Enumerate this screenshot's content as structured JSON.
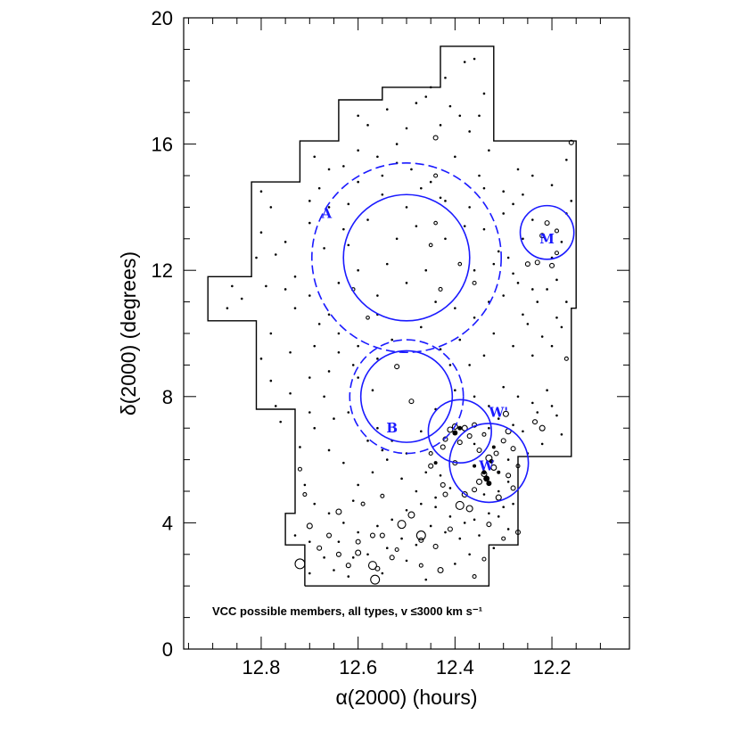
{
  "chart_data": {
    "type": "scatter",
    "xlabel_text": "α(2000) (hours)",
    "ylabel_text": "δ(2000) (degrees)",
    "xlim": [
      12.96,
      12.04
    ],
    "ylim": [
      0,
      20
    ],
    "x_reversed": true,
    "xticks": [
      12.8,
      12.6,
      12.4,
      12.2
    ],
    "xtick_labels": [
      "12.8",
      "12.6",
      "12.4",
      "12.2"
    ],
    "yticks": [
      0,
      4,
      8,
      12,
      16,
      20
    ],
    "ytick_labels": [
      "0",
      "4",
      "8",
      "12",
      "16",
      "20"
    ],
    "annotation": "VCC possible members, all types, v ≤3000 km s⁻¹",
    "colors": {
      "region": "#1a1aff",
      "points": "#000000"
    },
    "survey_boundary": [
      [
        12.71,
        2.0
      ],
      [
        12.33,
        2.0
      ],
      [
        12.33,
        3.3
      ],
      [
        12.27,
        3.3
      ],
      [
        12.27,
        6.1
      ],
      [
        12.16,
        6.1
      ],
      [
        12.16,
        10.8
      ],
      [
        12.15,
        10.8
      ],
      [
        12.15,
        16.1
      ],
      [
        12.32,
        16.1
      ],
      [
        12.32,
        19.1
      ],
      [
        12.43,
        19.1
      ],
      [
        12.43,
        17.8
      ],
      [
        12.55,
        17.8
      ],
      [
        12.55,
        17.4
      ],
      [
        12.64,
        17.4
      ],
      [
        12.64,
        16.1
      ],
      [
        12.72,
        16.1
      ],
      [
        12.72,
        14.8
      ],
      [
        12.82,
        14.8
      ],
      [
        12.82,
        11.8
      ],
      [
        12.91,
        11.8
      ],
      [
        12.91,
        10.4
      ],
      [
        12.81,
        10.4
      ],
      [
        12.81,
        7.6
      ],
      [
        12.73,
        7.6
      ],
      [
        12.73,
        4.3
      ],
      [
        12.75,
        4.3
      ],
      [
        12.75,
        3.3
      ],
      [
        12.71,
        3.3
      ],
      [
        12.71,
        2.0
      ]
    ],
    "regions": [
      {
        "label": "A",
        "ra": 12.5,
        "dec": 12.4,
        "r_solid": 2.0,
        "r_dashed": 3.0,
        "label_ra": 12.665,
        "label_dec": 13.8
      },
      {
        "label": "B",
        "ra": 12.5,
        "dec": 8.0,
        "r_solid": 1.45,
        "r_dashed": 1.8,
        "label_ra": 12.53,
        "label_dec": 7.0
      },
      {
        "label": "W'",
        "ra": 12.39,
        "dec": 6.9,
        "r_solid": 1.0,
        "label_ra": 12.31,
        "label_dec": 7.5
      },
      {
        "label": "W",
        "ra": 12.33,
        "dec": 5.9,
        "r_solid": 1.25,
        "label_ra": 12.335,
        "label_dec": 5.8
      },
      {
        "label": "M",
        "ra": 12.21,
        "dec": 13.2,
        "r_solid": 0.85,
        "label_ra": 12.21,
        "label_dec": 13.0
      }
    ],
    "galaxies_open": [
      [
        12.72,
        2.7,
        0.22
      ],
      [
        12.57,
        2.65,
        0.18
      ],
      [
        12.565,
        2.2,
        0.2
      ],
      [
        12.47,
        3.6,
        0.2
      ],
      [
        12.51,
        3.95,
        0.18
      ],
      [
        12.49,
        4.25,
        0.14
      ],
      [
        12.64,
        4.35,
        0.12
      ],
      [
        12.6,
        3.05,
        0.12
      ],
      [
        12.53,
        2.9,
        0.1
      ],
      [
        12.44,
        3.25,
        0.1
      ],
      [
        12.39,
        4.55,
        0.18
      ],
      [
        12.37,
        4.45,
        0.14
      ],
      [
        12.38,
        4.9,
        0.12
      ],
      [
        12.42,
        4.9,
        0.1
      ],
      [
        12.35,
        5.3,
        0.12
      ],
      [
        12.31,
        4.8,
        0.12
      ],
      [
        12.29,
        5.5,
        0.1
      ],
      [
        12.3,
        6.6,
        0.1
      ],
      [
        12.29,
        6.9,
        0.12
      ],
      [
        12.295,
        7.45,
        0.12
      ],
      [
        12.235,
        7.2,
        0.1
      ],
      [
        12.22,
        7.0,
        0.12
      ],
      [
        12.4,
        7.05,
        0.12
      ],
      [
        12.37,
        6.75,
        0.1
      ],
      [
        12.35,
        6.3,
        0.1
      ],
      [
        12.33,
        6.05,
        0.14
      ],
      [
        12.32,
        5.75,
        0.12
      ],
      [
        12.34,
        5.55,
        0.12
      ],
      [
        12.315,
        6.2,
        0.1
      ],
      [
        12.4,
        5.9,
        0.1
      ],
      [
        12.425,
        6.4,
        0.1
      ],
      [
        12.45,
        5.8,
        0.1
      ],
      [
        12.425,
        5.2,
        0.1
      ],
      [
        12.36,
        5.05,
        0.1
      ],
      [
        12.28,
        5.1,
        0.1
      ],
      [
        12.27,
        3.7,
        0.1
      ],
      [
        12.33,
        3.95,
        0.1
      ],
      [
        12.41,
        3.8,
        0.1
      ],
      [
        12.47,
        3.45,
        0.1
      ],
      [
        12.55,
        3.6,
        0.1
      ],
      [
        12.62,
        2.65,
        0.1
      ],
      [
        12.66,
        3.6,
        0.1
      ],
      [
        12.64,
        3.0,
        0.1
      ],
      [
        12.49,
        7.85,
        0.1
      ],
      [
        12.52,
        8.95,
        0.1
      ],
      [
        12.44,
        15.0,
        0.08
      ],
      [
        12.44,
        16.2,
        0.1
      ],
      [
        12.21,
        13.5,
        0.1
      ],
      [
        12.22,
        13.1,
        0.1
      ],
      [
        12.19,
        13.25,
        0.08
      ],
      [
        12.23,
        12.25,
        0.1
      ],
      [
        12.2,
        12.15,
        0.1
      ],
      [
        12.19,
        12.55,
        0.08
      ],
      [
        12.25,
        12.2,
        0.1
      ],
      [
        12.16,
        16.05,
        0.1
      ],
      [
        12.17,
        9.2,
        0.08
      ],
      [
        12.36,
        11.6,
        0.08
      ],
      [
        12.43,
        11.4,
        0.08
      ],
      [
        12.61,
        11.4,
        0.06
      ],
      [
        12.58,
        10.5,
        0.06
      ],
      [
        12.45,
        12.8,
        0.06
      ],
      [
        12.44,
        13.5,
        0.06
      ],
      [
        12.39,
        12.2,
        0.06
      ],
      [
        12.72,
        5.7,
        0.08
      ],
      [
        12.71,
        4.9,
        0.08
      ],
      [
        12.59,
        4.6,
        0.08
      ],
      [
        12.55,
        4.85,
        0.08
      ],
      [
        12.7,
        3.9,
        0.12
      ],
      [
        12.57,
        3.6,
        0.1
      ],
      [
        12.36,
        2.3,
        0.08
      ],
      [
        12.43,
        2.5,
        0.12
      ],
      [
        12.47,
        2.65,
        0.08
      ],
      [
        12.52,
        3.15,
        0.08
      ],
      [
        12.6,
        3.4,
        0.1
      ],
      [
        12.34,
        2.85,
        0.08
      ],
      [
        12.3,
        3.5,
        0.08
      ],
      [
        12.28,
        6.35,
        0.1
      ],
      [
        12.27,
        5.8,
        0.08
      ],
      [
        12.45,
        6.2,
        0.08
      ],
      [
        12.42,
        6.65,
        0.1
      ],
      [
        12.38,
        7.0,
        0.12
      ],
      [
        12.36,
        7.1,
        0.1
      ],
      [
        12.41,
        6.95,
        0.12
      ],
      [
        12.39,
        6.55,
        0.1
      ],
      [
        12.34,
        6.8,
        0.08
      ],
      [
        12.56,
        2.55,
        0.1
      ],
      [
        12.68,
        3.2,
        0.1
      ]
    ],
    "galaxies_filled": [
      [
        12.335,
        5.4,
        0.14
      ],
      [
        12.33,
        5.25,
        0.12
      ],
      [
        12.34,
        5.6,
        0.1
      ],
      [
        12.325,
        5.95,
        0.1
      ],
      [
        12.4,
        6.85,
        0.12
      ],
      [
        12.39,
        7.0,
        0.1
      ],
      [
        12.44,
        5.9,
        0.06
      ],
      [
        12.36,
        5.8,
        0.06
      ],
      [
        12.32,
        6.4,
        0.06
      ],
      [
        12.31,
        5.6,
        0.06
      ]
    ],
    "galaxies_dots": [
      [
        12.69,
        15.6
      ],
      [
        12.7,
        14.2
      ],
      [
        12.66,
        15.2
      ],
      [
        12.6,
        15.8
      ],
      [
        12.52,
        16.0
      ],
      [
        12.49,
        15.2
      ],
      [
        12.45,
        14.8
      ],
      [
        12.42,
        14.2
      ],
      [
        12.4,
        15.6
      ],
      [
        12.35,
        15.0
      ],
      [
        12.33,
        15.8
      ],
      [
        12.3,
        14.5
      ],
      [
        12.27,
        15.2
      ],
      [
        12.24,
        15.0
      ],
      [
        12.2,
        14.7
      ],
      [
        12.17,
        15.5
      ],
      [
        12.16,
        14.2
      ],
      [
        12.78,
        14.0
      ],
      [
        12.8,
        13.2
      ],
      [
        12.77,
        12.5
      ],
      [
        12.73,
        11.8
      ],
      [
        12.7,
        11.2
      ],
      [
        12.66,
        10.6
      ],
      [
        12.64,
        10.0
      ],
      [
        12.6,
        9.6
      ],
      [
        12.56,
        9.2
      ],
      [
        12.53,
        9.8
      ],
      [
        12.47,
        10.2
      ],
      [
        12.43,
        9.5
      ],
      [
        12.39,
        9.8
      ],
      [
        12.36,
        10.5
      ],
      [
        12.32,
        10.0
      ],
      [
        12.28,
        9.6
      ],
      [
        12.25,
        10.3
      ],
      [
        12.22,
        9.9
      ],
      [
        12.19,
        10.5
      ],
      [
        12.17,
        11.0
      ],
      [
        12.19,
        11.7
      ],
      [
        12.24,
        11.4
      ],
      [
        12.28,
        11.9
      ],
      [
        12.31,
        12.6
      ],
      [
        12.34,
        13.3
      ],
      [
        12.37,
        14.0
      ],
      [
        12.55,
        14.4
      ],
      [
        12.58,
        13.6
      ],
      [
        12.62,
        12.8
      ],
      [
        12.54,
        12.2
      ],
      [
        12.5,
        11.6
      ],
      [
        12.46,
        12.0
      ],
      [
        12.42,
        13.0
      ],
      [
        12.48,
        13.4
      ],
      [
        12.52,
        13.0
      ],
      [
        12.56,
        11.2
      ],
      [
        12.6,
        12.0
      ],
      [
        12.63,
        13.3
      ],
      [
        12.67,
        12.7
      ],
      [
        12.7,
        13.5
      ],
      [
        12.75,
        12.9
      ],
      [
        12.79,
        11.5
      ],
      [
        12.87,
        10.8
      ],
      [
        12.84,
        11.1
      ],
      [
        12.78,
        10.0
      ],
      [
        12.74,
        9.4
      ],
      [
        12.7,
        8.6
      ],
      [
        12.67,
        8.0
      ],
      [
        12.62,
        7.5
      ],
      [
        12.6,
        8.6
      ],
      [
        12.56,
        7.0
      ],
      [
        12.53,
        6.6
      ],
      [
        12.47,
        6.9
      ],
      [
        12.44,
        7.6
      ],
      [
        12.4,
        8.2
      ],
      [
        12.36,
        8.0
      ],
      [
        12.33,
        7.7
      ],
      [
        12.3,
        8.3
      ],
      [
        12.27,
        8.0
      ],
      [
        12.24,
        7.8
      ],
      [
        12.21,
        8.2
      ],
      [
        12.19,
        7.4
      ],
      [
        12.18,
        6.8
      ],
      [
        12.22,
        6.5
      ],
      [
        12.25,
        6.2
      ],
      [
        12.29,
        6.0
      ],
      [
        12.76,
        7.2
      ],
      [
        12.78,
        8.5
      ],
      [
        12.8,
        9.2
      ],
      [
        12.72,
        6.4
      ],
      [
        12.69,
        7.0
      ],
      [
        12.66,
        6.3
      ],
      [
        12.63,
        5.9
      ],
      [
        12.6,
        5.2
      ],
      [
        12.57,
        5.6
      ],
      [
        12.54,
        6.0
      ],
      [
        12.51,
        5.4
      ],
      [
        12.48,
        5.0
      ],
      [
        12.44,
        4.5
      ],
      [
        12.41,
        4.2
      ],
      [
        12.38,
        4.0
      ],
      [
        12.35,
        3.6
      ],
      [
        12.32,
        3.2
      ],
      [
        12.29,
        3.8
      ],
      [
        12.31,
        4.2
      ],
      [
        12.28,
        4.6
      ],
      [
        12.6,
        3.7
      ],
      [
        12.64,
        3.4
      ],
      [
        12.67,
        2.9
      ],
      [
        12.62,
        2.3
      ],
      [
        12.55,
        2.4
      ],
      [
        12.5,
        2.8
      ],
      [
        12.46,
        2.2
      ],
      [
        12.4,
        2.7
      ],
      [
        12.37,
        3.0
      ],
      [
        12.73,
        3.6
      ],
      [
        12.69,
        4.6
      ],
      [
        12.71,
        5.2
      ],
      [
        12.58,
        16.6
      ],
      [
        12.54,
        17.1
      ],
      [
        12.5,
        16.5
      ],
      [
        12.46,
        17.5
      ],
      [
        12.42,
        18.1
      ],
      [
        12.38,
        18.6
      ],
      [
        12.36,
        18.7
      ],
      [
        12.34,
        17.6
      ],
      [
        12.39,
        16.9
      ],
      [
        12.43,
        16.6
      ],
      [
        12.48,
        17.3
      ],
      [
        12.45,
        17.8
      ],
      [
        12.41,
        17.2
      ],
      [
        12.37,
        16.4
      ],
      [
        12.35,
        16.9
      ],
      [
        12.6,
        16.9
      ],
      [
        12.56,
        15.6
      ],
      [
        12.68,
        14.6
      ],
      [
        12.62,
        14.1
      ],
      [
        12.43,
        14.3
      ],
      [
        12.38,
        13.4
      ],
      [
        12.36,
        12.0
      ],
      [
        12.44,
        11.0
      ],
      [
        12.4,
        10.8
      ],
      [
        12.56,
        10.6
      ],
      [
        12.64,
        11.6
      ],
      [
        12.68,
        10.3
      ],
      [
        12.73,
        10.8
      ],
      [
        12.75,
        11.4
      ],
      [
        12.81,
        12.4
      ],
      [
        12.8,
        14.5
      ],
      [
        12.86,
        11.5
      ],
      [
        12.26,
        13.0
      ],
      [
        12.24,
        13.6
      ],
      [
        12.18,
        12.9
      ],
      [
        12.17,
        13.8
      ],
      [
        12.2,
        12.4
      ],
      [
        12.23,
        11.0
      ],
      [
        12.26,
        10.6
      ],
      [
        12.3,
        11.2
      ],
      [
        12.33,
        11.0
      ],
      [
        12.34,
        9.3
      ],
      [
        12.37,
        9.0
      ],
      [
        12.41,
        9.0
      ],
      [
        12.57,
        8.2
      ],
      [
        12.61,
        9.0
      ],
      [
        12.64,
        9.4
      ],
      [
        12.66,
        8.8
      ],
      [
        12.69,
        9.6
      ],
      [
        12.7,
        7.5
      ],
      [
        12.74,
        8.1
      ],
      [
        12.77,
        7.7
      ],
      [
        12.65,
        7.3
      ],
      [
        12.58,
        6.6
      ],
      [
        12.55,
        6.3
      ],
      [
        12.5,
        6.2
      ],
      [
        12.46,
        5.6
      ],
      [
        12.43,
        5.5
      ],
      [
        12.41,
        5.1
      ],
      [
        12.44,
        4.8
      ],
      [
        12.47,
        4.6
      ],
      [
        12.5,
        4.4
      ],
      [
        12.53,
        4.1
      ],
      [
        12.56,
        3.9
      ],
      [
        12.63,
        4.0
      ],
      [
        12.66,
        4.3
      ],
      [
        12.61,
        4.7
      ],
      [
        12.26,
        6.9
      ],
      [
        12.23,
        7.5
      ],
      [
        12.2,
        7.7
      ],
      [
        12.36,
        6.5
      ],
      [
        12.33,
        7.0
      ],
      [
        12.31,
        7.3
      ],
      [
        12.28,
        7.1
      ],
      [
        12.34,
        4.9
      ],
      [
        12.31,
        5.0
      ],
      [
        12.29,
        5.3
      ],
      [
        12.3,
        4.5
      ],
      [
        12.33,
        4.3
      ],
      [
        12.36,
        4.1
      ],
      [
        12.39,
        3.5
      ],
      [
        12.42,
        3.7
      ],
      [
        12.45,
        3.9
      ],
      [
        12.48,
        3.3
      ],
      [
        12.51,
        3.5
      ],
      [
        12.54,
        3.2
      ],
      [
        12.58,
        3.0
      ],
      [
        12.61,
        2.9
      ],
      [
        12.65,
        2.5
      ],
      [
        12.7,
        2.4
      ],
      [
        12.7,
        3.4
      ],
      [
        12.5,
        14.0
      ],
      [
        12.47,
        14.6
      ],
      [
        12.52,
        15.4
      ],
      [
        12.55,
        15.0
      ],
      [
        12.6,
        14.8
      ],
      [
        12.63,
        15.3
      ],
      [
        12.66,
        14.0
      ],
      [
        12.34,
        14.6
      ],
      [
        12.3,
        13.8
      ],
      [
        12.28,
        14.1
      ],
      [
        12.26,
        14.4
      ],
      [
        12.32,
        12.2
      ],
      [
        12.29,
        12.4
      ],
      [
        12.27,
        11.6
      ],
      [
        12.21,
        11.4
      ],
      [
        12.18,
        10.2
      ],
      [
        12.2,
        9.6
      ],
      [
        12.24,
        9.3
      ]
    ]
  }
}
